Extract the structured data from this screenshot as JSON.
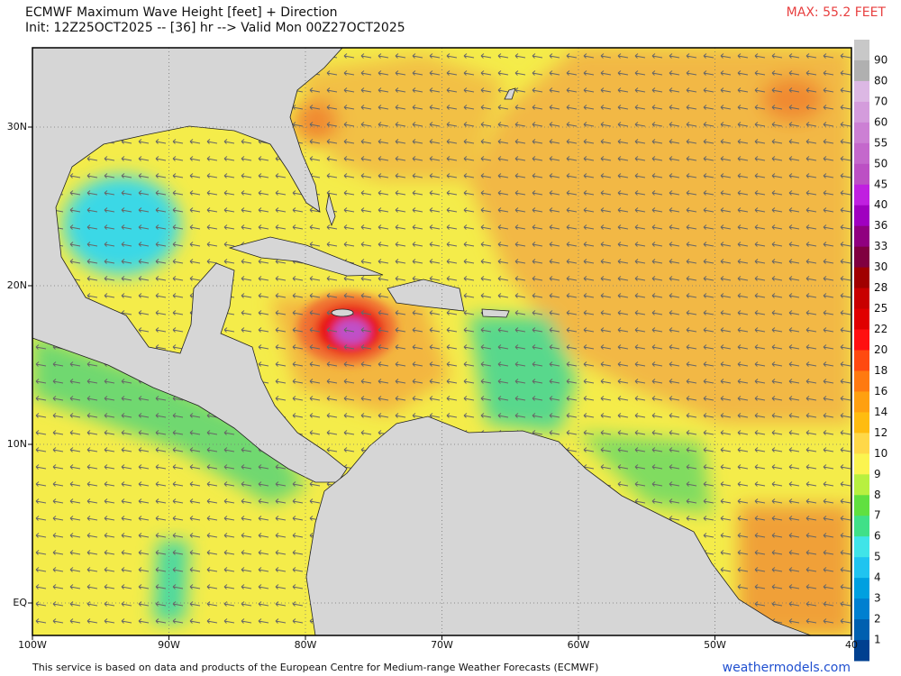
{
  "header": {
    "title": "ECMWF Maximum Wave Height [feet] + Direction",
    "subtitle": "Init: 12Z25OCT2025 -- [36] hr --> Valid Mon 00Z27OCT2025",
    "max": "MAX: 55.2 FEET"
  },
  "map": {
    "lat_labels": [
      "30N",
      "20N",
      "10N",
      "EQ"
    ],
    "lon_labels": [
      "100W",
      "90W",
      "80W",
      "70W",
      "60W",
      "50W",
      "40"
    ]
  },
  "colorbar": {
    "labels": [
      "90",
      "80",
      "70",
      "60",
      "55",
      "50",
      "45",
      "40",
      "36",
      "33",
      "30",
      "28",
      "25",
      "22",
      "20",
      "18",
      "16",
      "14",
      "12",
      "10",
      "9",
      "8",
      "7",
      "6",
      "5",
      "4",
      "3",
      "2",
      "1"
    ],
    "colors": [
      "#c8c8c8",
      "#b0b0b0",
      "#dcb8e4",
      "#d49cdc",
      "#cc80d4",
      "#c468cc",
      "#bc50c4",
      "#c020e0",
      "#a000c0",
      "#900080",
      "#800040",
      "#a00000",
      "#c80000",
      "#e00000",
      "#ff1010",
      "#ff4a10",
      "#ff7a10",
      "#ffa010",
      "#ffbc10",
      "#ffd848",
      "#fbf450",
      "#b8f040",
      "#60e040",
      "#40e088",
      "#40e4e8",
      "#20c4f0",
      "#00a0e0",
      "#0080d0",
      "#0060b0",
      "#004090"
    ]
  },
  "footer": {
    "credit": "This service is based on data and products of the European Centre for Medium-range Weather Forecasts (ECMWF)",
    "source": "weathermodels.com"
  }
}
